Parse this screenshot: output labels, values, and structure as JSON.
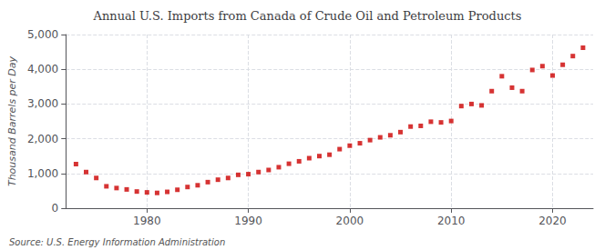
{
  "chart_data": {
    "type": "scatter",
    "title": "Annual U.S. Imports from Canada of Crude Oil and Petroleum Products",
    "ylabel": "Thousand Barrels per Day",
    "annotations": [
      "Source: U.S. Energy Information Administration"
    ],
    "marker": "square",
    "color": "#cc0000",
    "grid": true,
    "xlim": [
      1972,
      2024
    ],
    "xticks": [
      1980,
      1990,
      2000,
      2010,
      2020
    ],
    "ylim": [
      0,
      5000
    ],
    "yticks": [
      0,
      {
        "value": 1000,
        "label": "1,000"
      },
      {
        "value": 2000,
        "label": "2,000"
      },
      {
        "value": 3000,
        "label": "3,000"
      },
      {
        "value": 4000,
        "label": "4,000"
      },
      {
        "value": 5000,
        "label": "5,000"
      }
    ],
    "x": [
      1973,
      1974,
      1975,
      1976,
      1977,
      1978,
      1979,
      1980,
      1981,
      1982,
      1983,
      1984,
      1985,
      1986,
      1987,
      1988,
      1989,
      1990,
      1991,
      1992,
      1993,
      1994,
      1995,
      1996,
      1997,
      1998,
      1999,
      2000,
      2001,
      2002,
      2003,
      2004,
      2005,
      2006,
      2007,
      2008,
      2009,
      2010,
      2011,
      2012,
      2013,
      2014,
      2015,
      2016,
      2017,
      2018,
      2019,
      2020,
      2021,
      2022,
      2023
    ],
    "values": [
      1270,
      1040,
      870,
      630,
      580,
      540,
      480,
      455,
      440,
      470,
      530,
      610,
      660,
      750,
      820,
      870,
      960,
      980,
      1040,
      1100,
      1180,
      1280,
      1350,
      1440,
      1500,
      1540,
      1700,
      1800,
      1870,
      1960,
      2040,
      2100,
      2190,
      2350,
      2370,
      2490,
      2470,
      2510,
      2940,
      3000,
      2960,
      3370,
      3800,
      3470,
      3370,
      3980,
      4090,
      3820,
      4130,
      4380,
      4620
    ]
  }
}
